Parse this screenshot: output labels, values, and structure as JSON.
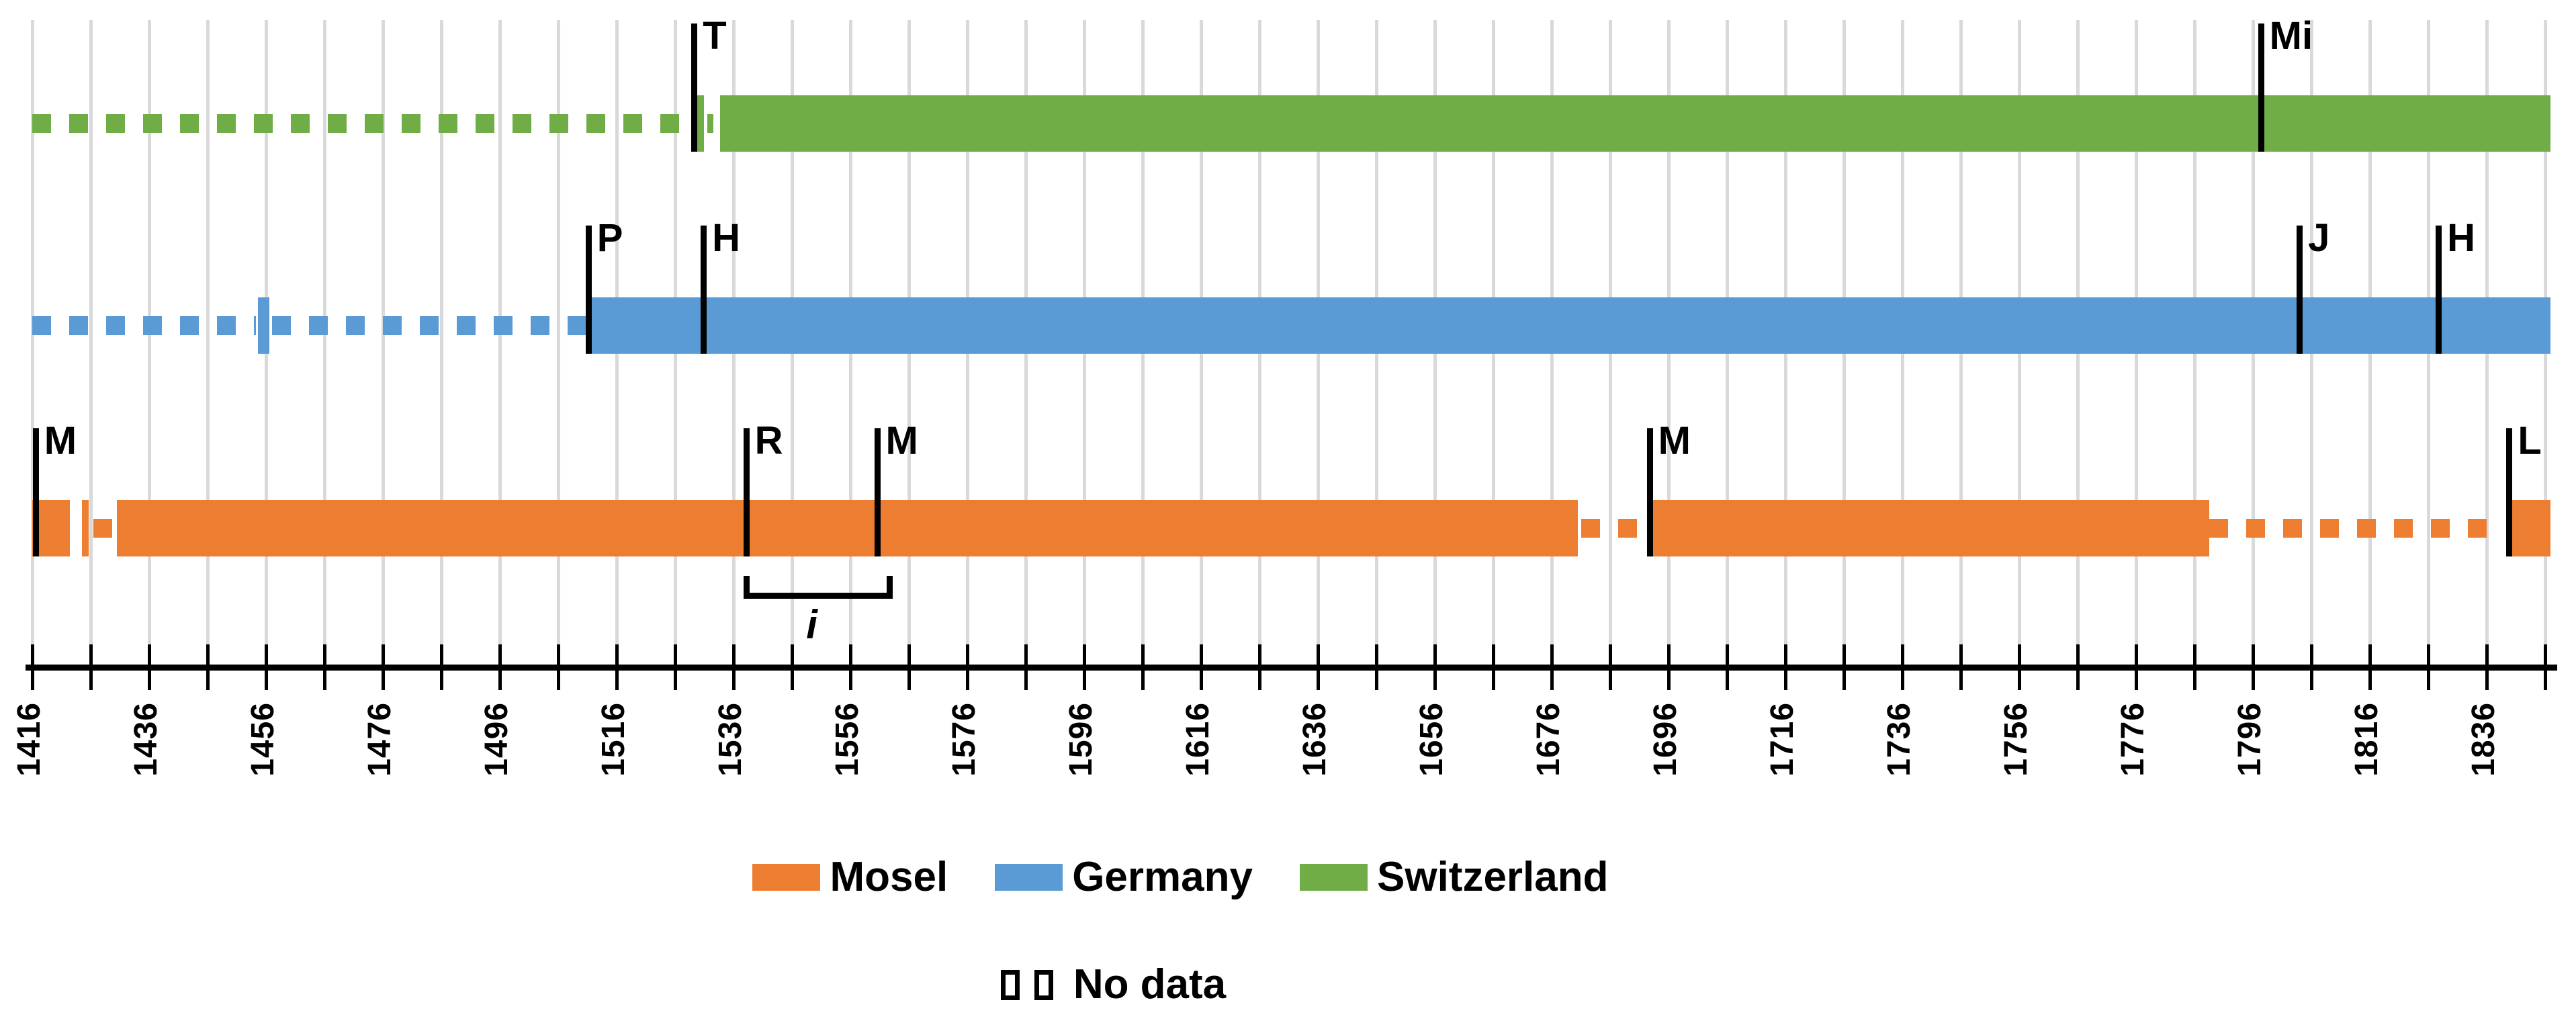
{
  "chart_data": {
    "type": "timeline-gantt",
    "title": "",
    "x_axis": {
      "min": 1416,
      "max": 1847.3,
      "gridline_interval": 10,
      "label_interval": 20,
      "gridlines": true,
      "tick_labels": [
        "1416",
        "1436",
        "1456",
        "1476",
        "1496",
        "1516",
        "1536",
        "1556",
        "1576",
        "1596",
        "1616",
        "1636",
        "1656",
        "1676",
        "1696",
        "1716",
        "1736",
        "1756",
        "1776",
        "1796",
        "1816",
        "1836"
      ]
    },
    "colors": {
      "mosel": "#ED7D31",
      "germany": "#5B9BD5",
      "switzerland": "#70AD47",
      "gridline": "#D9D9D9",
      "marker": "#000000"
    },
    "series": [
      {
        "name": "Switzerland",
        "color": "#70AD47",
        "row": 0,
        "segments": [
          {
            "type": "nodata",
            "start": 1416,
            "end": 1529.3
          },
          {
            "type": "solid",
            "start": 1529.8,
            "end": 1530.9
          },
          {
            "type": "nodata",
            "start": 1531.5,
            "end": 1532.6
          },
          {
            "type": "solid",
            "start": 1533.7,
            "end": 1847.3
          }
        ],
        "markers": [
          {
            "label": "T",
            "year": 1529.3
          },
          {
            "label": "Mi",
            "year": 1797.4
          }
        ]
      },
      {
        "name": "Germany",
        "color": "#5B9BD5",
        "row": 1,
        "segments": [
          {
            "type": "nodata",
            "start": 1416,
            "end": 1454.3
          },
          {
            "type": "solid",
            "start": 1454.6,
            "end": 1456.6
          },
          {
            "type": "nodata",
            "start": 1457,
            "end": 1511.4
          },
          {
            "type": "solid",
            "start": 1511.6,
            "end": 1847.3
          }
        ],
        "markers": [
          {
            "label": "P",
            "year": 1511.2
          },
          {
            "label": "H",
            "year": 1530.9
          },
          {
            "label": "J",
            "year": 1804
          },
          {
            "label": "H",
            "year": 1827.8
          }
        ]
      },
      {
        "name": "Mosel",
        "color": "#ED7D31",
        "row": 2,
        "segments": [
          {
            "type": "solid",
            "start": 1416,
            "end": 1422.4
          },
          {
            "type": "solid",
            "start": 1424.5,
            "end": 1425.6
          },
          {
            "type": "nodata",
            "start": 1426.5,
            "end": 1429.9
          },
          {
            "type": "solid",
            "start": 1430.5,
            "end": 1680.5
          },
          {
            "type": "nodata",
            "start": 1681.1,
            "end": 1691.3
          },
          {
            "type": "solid",
            "start": 1692.8,
            "end": 1788.5
          },
          {
            "type": "nodata",
            "start": 1788.5,
            "end": 1837.6
          },
          {
            "type": "solid",
            "start": 1840.4,
            "end": 1847.3
          }
        ],
        "markers": [
          {
            "label": "M",
            "year": 1416.6
          },
          {
            "label": "R",
            "year": 1538.2
          },
          {
            "label": "M",
            "year": 1560.6
          },
          {
            "label": "M",
            "year": 1692.8
          },
          {
            "label": "L",
            "year": 1839.9
          }
        ],
        "bracket": {
          "start": 1538.2,
          "end": 1560.6,
          "label": "i"
        }
      }
    ],
    "legend": [
      {
        "label": "Mosel",
        "color": "#ED7D31"
      },
      {
        "label": "Germany",
        "color": "#5B9BD5"
      },
      {
        "label": "Switzerland",
        "color": "#70AD47"
      }
    ],
    "nodata_legend": {
      "label": "No data"
    }
  }
}
